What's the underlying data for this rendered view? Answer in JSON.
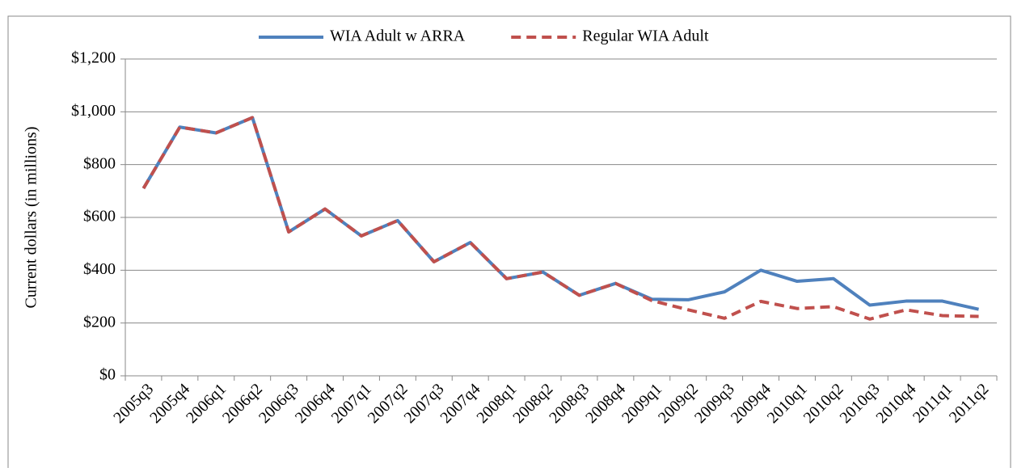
{
  "chart_data": {
    "type": "line",
    "y_label": "Current dollars (in millions)",
    "categories": [
      "2005q3",
      "2005q4",
      "2006q1",
      "2006q2",
      "2006q3",
      "2006q4",
      "2007q1",
      "2007q2",
      "2007q3",
      "2007q4",
      "2008q1",
      "2008q2",
      "2008q3",
      "2008q4",
      "2009q1",
      "2009q2",
      "2009q3",
      "2009q4",
      "2010q1",
      "2010q2",
      "2010q3",
      "2010q4",
      "2011q1",
      "2011q2"
    ],
    "series": [
      {
        "name": "WIA Adult w ARRA",
        "color": "#4f81bd",
        "dash": false,
        "values": [
          710,
          942,
          920,
          978,
          545,
          632,
          530,
          588,
          432,
          505,
          368,
          393,
          305,
          350,
          290,
          288,
          318,
          400,
          358,
          368,
          268,
          283,
          283,
          252
        ]
      },
      {
        "name": "Regular WIA Adult",
        "color": "#c0504d",
        "dash": true,
        "values": [
          710,
          942,
          920,
          978,
          545,
          632,
          530,
          588,
          432,
          505,
          368,
          393,
          305,
          350,
          285,
          250,
          218,
          282,
          255,
          262,
          215,
          250,
          228,
          225
        ]
      }
    ],
    "ylim": [
      0,
      1200
    ],
    "yticks": [
      {
        "value": 0,
        "label": "$0"
      },
      {
        "value": 200,
        "label": "$200"
      },
      {
        "value": 400,
        "label": "$400"
      },
      {
        "value": 600,
        "label": "$600"
      },
      {
        "value": 800,
        "label": "$800"
      },
      {
        "value": 1000,
        "label": "$1,000"
      },
      {
        "value": 1200,
        "label": "$1,200"
      }
    ],
    "grid": true,
    "legend": "top"
  }
}
